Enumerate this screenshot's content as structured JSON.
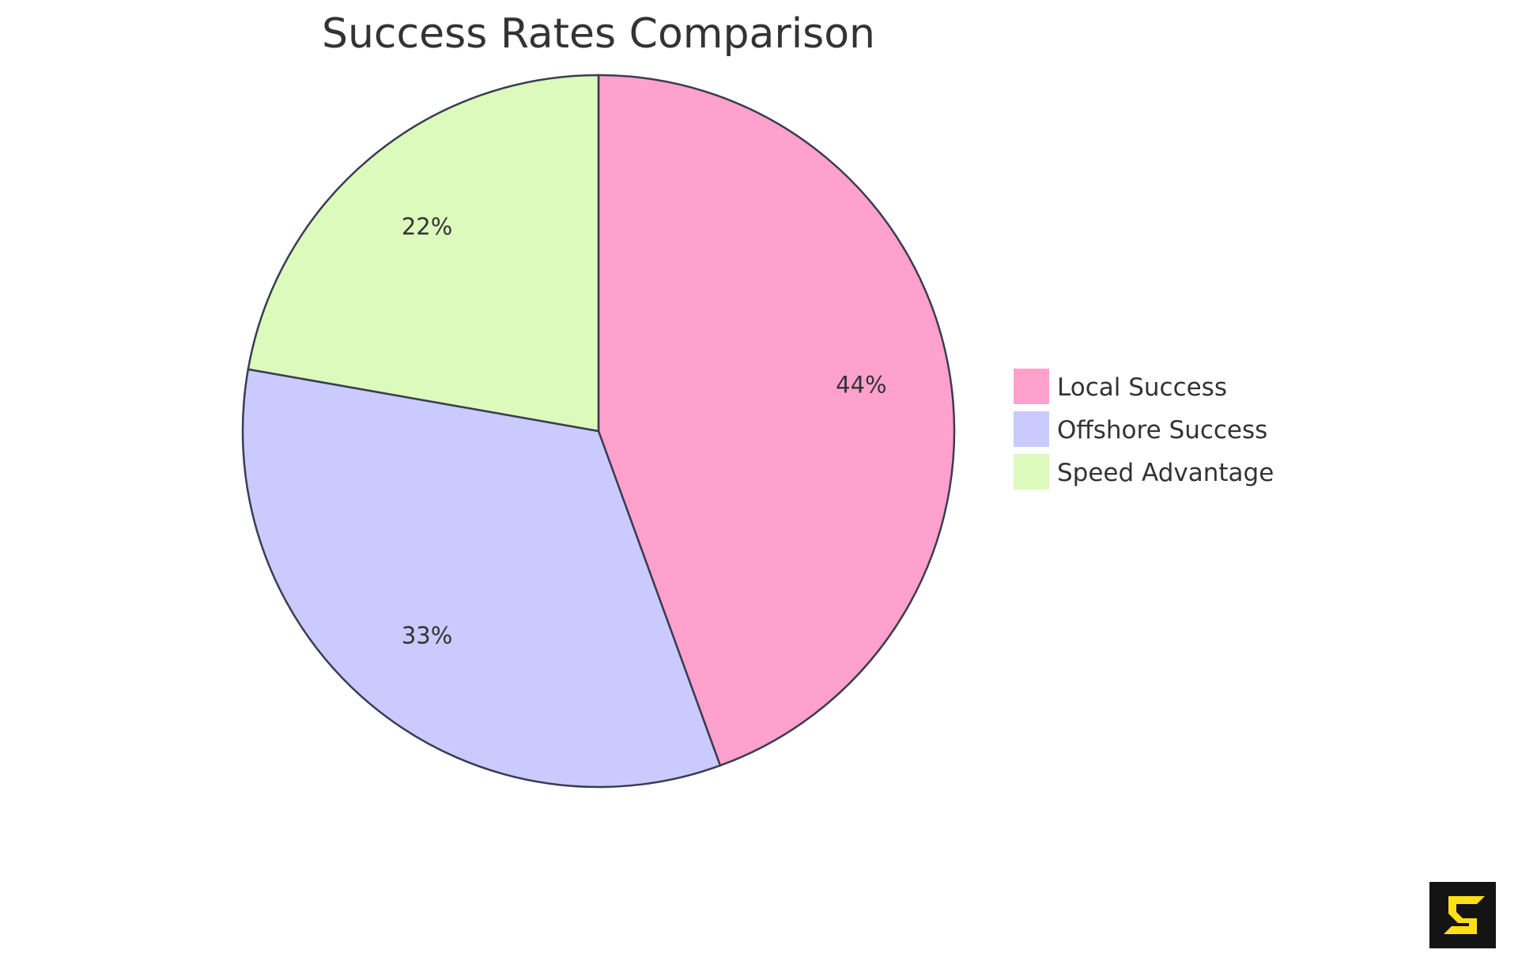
{
  "chart_data": {
    "type": "pie",
    "title": "Success Rates Comparison",
    "categories": [
      "Local Success",
      "Offshore Success",
      "Speed Advantage"
    ],
    "values": [
      44.4,
      33.3,
      22.2
    ],
    "labels": [
      "44%",
      "33%",
      "22%"
    ],
    "colors": [
      "#FFA1CC",
      "#CACAFF",
      "#DCFABB"
    ],
    "stroke_color": "#3A3C52",
    "start": "top, clockwise",
    "legend_placement": "right"
  },
  "logo": {
    "text": "S",
    "colors": {
      "background": "#141414",
      "mark": "#FFDF1A"
    }
  }
}
